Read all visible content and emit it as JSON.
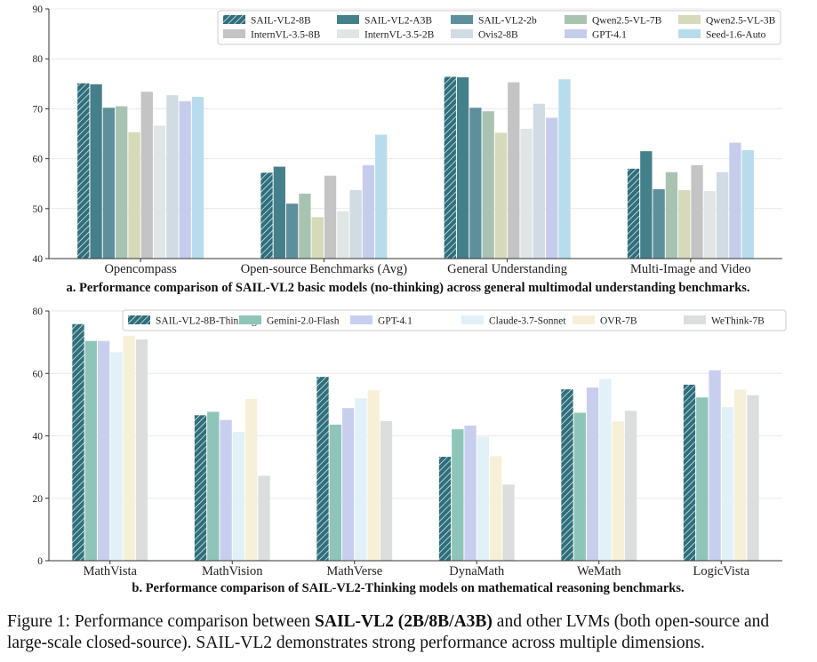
{
  "chart_data": [
    {
      "type": "bar",
      "title": "a. Performance comparison of SAIL-VL2 basic models (no-thinking) across general multimodal understanding benchmarks.",
      "xlabel": "",
      "ylabel": "",
      "ylim": [
        40,
        90
      ],
      "yticks": [
        40,
        50,
        60,
        70,
        80,
        90
      ],
      "grid": true,
      "legend_position": "top-right",
      "categories": [
        "Opencompass",
        "Open-source Benchmarks (Avg)",
        "General Understanding",
        "Multi-Image and Video"
      ],
      "series": [
        {
          "name": "SAIL-VL2-8B",
          "color": "#2f6f7c",
          "hatch": true,
          "values": [
            75.1,
            57.2,
            76.4,
            58.0
          ]
        },
        {
          "name": "SAIL-VL2-A3B",
          "color": "#44808a",
          "hatch": false,
          "values": [
            74.9,
            58.4,
            76.3,
            61.5
          ]
        },
        {
          "name": "SAIL-VL2-2b",
          "color": "#5e909b",
          "hatch": false,
          "values": [
            70.2,
            51.0,
            70.2,
            53.9
          ]
        },
        {
          "name": "Qwen2.5-VL-7B",
          "color": "#a9c3b2",
          "hatch": false,
          "values": [
            70.5,
            53.0,
            69.5,
            57.3
          ]
        },
        {
          "name": "Qwen2.5-VL-3B",
          "color": "#d6d9ba",
          "hatch": false,
          "values": [
            65.3,
            48.3,
            65.2,
            53.7
          ]
        },
        {
          "name": "InternVL-3.5-8B",
          "color": "#c4c4c4",
          "hatch": false,
          "values": [
            73.4,
            56.6,
            75.3,
            58.7
          ]
        },
        {
          "name": "InternVL-3.5-2B",
          "color": "#e2e5e5",
          "hatch": false,
          "values": [
            66.6,
            49.5,
            66.0,
            53.5
          ]
        },
        {
          "name": "Ovis2-8B",
          "color": "#d0dbe4",
          "hatch": false,
          "values": [
            72.7,
            53.7,
            71.0,
            57.3
          ]
        },
        {
          "name": "GPT-4.1",
          "color": "#c6cdec",
          "hatch": false,
          "values": [
            71.5,
            58.7,
            68.2,
            63.2
          ]
        },
        {
          "name": "Seed-1.6-Auto",
          "color": "#b8dcec",
          "hatch": false,
          "values": [
            72.4,
            64.8,
            75.9,
            61.7
          ]
        }
      ]
    },
    {
      "type": "bar",
      "title": "b. Performance comparison of SAIL-VL2-Thinking models on mathematical reasoning benchmarks.",
      "xlabel": "",
      "ylabel": "",
      "ylim": [
        0,
        80
      ],
      "yticks": [
        0,
        20,
        40,
        60,
        80
      ],
      "grid": true,
      "legend_position": "top",
      "categories": [
        "MathVista",
        "MathVision",
        "MathVerse",
        "DynaMath",
        "WeMath",
        "LogicVista"
      ],
      "series": [
        {
          "name": "SAIL-VL2-8B-Thinking",
          "color": "#2f6f7c",
          "hatch": true,
          "values": [
            75.8,
            46.6,
            58.9,
            33.3,
            54.9,
            56.4
          ]
        },
        {
          "name": "Gemini-2.0-Flash",
          "color": "#8ec5b8",
          "hatch": false,
          "values": [
            70.4,
            47.7,
            43.6,
            42.1,
            47.4,
            52.3
          ]
        },
        {
          "name": "GPT-4.1",
          "color": "#c8cfee",
          "hatch": false,
          "values": [
            70.4,
            45.1,
            48.9,
            43.3,
            55.5,
            61.0
          ]
        },
        {
          "name": "Claude-3.7-Sonnet",
          "color": "#e2f0f8",
          "hatch": false,
          "values": [
            66.8,
            41.3,
            52.0,
            39.7,
            58.2,
            49.2
          ]
        },
        {
          "name": "OVR-7B",
          "color": "#f6f0d9",
          "hatch": false,
          "values": [
            72.1,
            51.8,
            54.6,
            33.5,
            44.6,
            54.8
          ]
        },
        {
          "name": "WeThink-7B",
          "color": "#dcdede",
          "hatch": false,
          "values": [
            70.9,
            27.2,
            44.7,
            24.4,
            48.0,
            53.0
          ]
        }
      ]
    }
  ],
  "caption": {
    "prefix": "Figure 1: Performance comparison between ",
    "bold": "SAIL-VL2 (2B/8B/A3B)",
    "suffix": " and other LVMs (both open-source and large-scale closed-source). SAIL-VL2 demonstrates strong performance across multiple dimensions."
  }
}
